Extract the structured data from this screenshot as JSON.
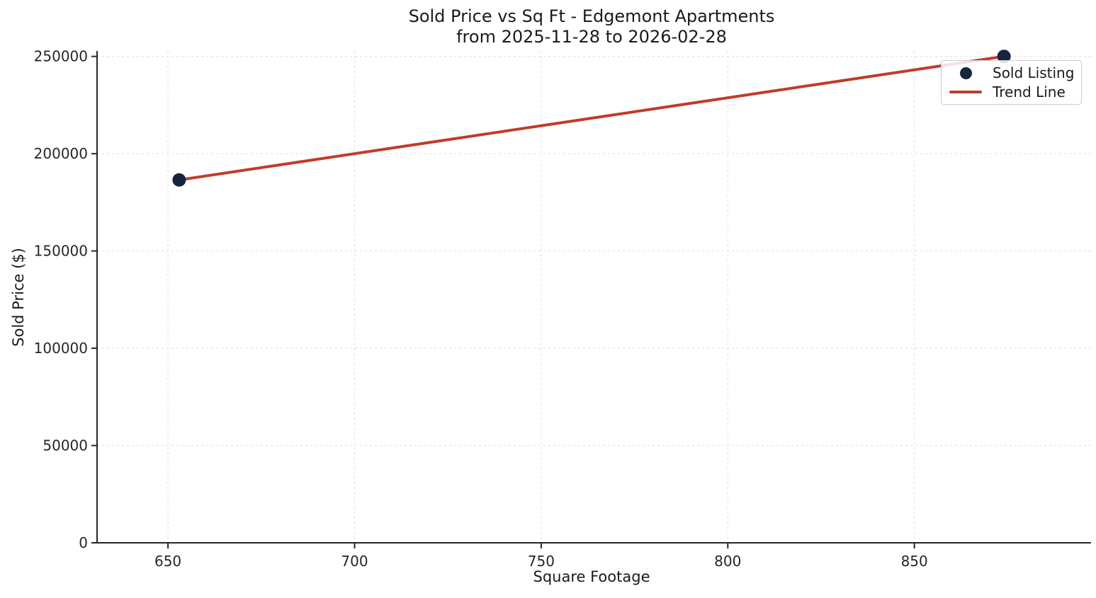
{
  "title": {
    "line1": "Sold Price vs Sq Ft - Edgemont Apartments",
    "line2": "from 2025-11-28 to 2026-02-28"
  },
  "axes": {
    "xlabel": "Square Footage",
    "ylabel": "Sold Price ($)"
  },
  "legend": {
    "position": "upper right",
    "items": [
      {
        "label": "Sold Listing",
        "marker": "dot"
      },
      {
        "label": "Trend Line",
        "marker": "line"
      }
    ]
  },
  "colors": {
    "scatter": "#16243E",
    "trend": "#C23B2B",
    "grid": "#DCDCDC",
    "spine": "#262626",
    "tick_text": "#262626",
    "text": "#1A1A1A",
    "legend_border": "#CCCCCC",
    "background": "#FFFFFF"
  },
  "chart_data": {
    "type": "scatter",
    "title": "Sold Price vs Sq Ft - Edgemont Apartments\nfrom 2025-11-28 to 2026-02-28",
    "xlabel": "Square Footage",
    "ylabel": "Sold Price ($)",
    "xlim": [
      631,
      896
    ],
    "ylim": [
      0,
      252800
    ],
    "x_ticks": [
      650,
      700,
      750,
      800,
      850
    ],
    "y_ticks": [
      0,
      50000,
      100000,
      150000,
      200000,
      250000
    ],
    "grid": true,
    "grid_style": "dashed",
    "legend_position": "upper right",
    "series": [
      {
        "name": "Sold Listing",
        "type": "scatter",
        "color": "#16243E",
        "points": [
          {
            "x": 653,
            "y": 186500
          },
          {
            "x": 874,
            "y": 250000
          }
        ]
      },
      {
        "name": "Trend Line",
        "type": "line",
        "color": "#C23B2B",
        "points": [
          {
            "x": 653,
            "y": 186500
          },
          {
            "x": 874,
            "y": 250000
          }
        ]
      }
    ]
  }
}
